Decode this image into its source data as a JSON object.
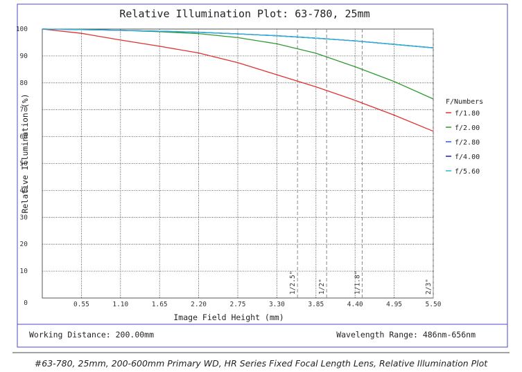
{
  "chart_data": {
    "type": "line",
    "title": "Relative Illumination Plot: 63-780, 25mm",
    "xlabel": "Image Field Height (mm)",
    "ylabel": "Relative Illumination (%)",
    "xlim": [
      0,
      5.5
    ],
    "ylim": [
      0,
      100
    ],
    "x_ticks": [
      "0.55",
      "1.10",
      "1.65",
      "2.20",
      "2.75",
      "3.30",
      "3.85",
      "4.40",
      "4.95",
      "5.50"
    ],
    "y_ticks": [
      "0",
      "10",
      "20",
      "30",
      "40",
      "50",
      "60",
      "70",
      "80",
      "90",
      "100"
    ],
    "grid": true,
    "legend_title": "F/Numbers",
    "legend_position": "right",
    "sensor_markers": [
      {
        "label": "1/2.5\"",
        "x": 3.59
      },
      {
        "label": "1/2\"",
        "x": 4.0
      },
      {
        "label": "1/1.8\"",
        "x": 4.5
      },
      {
        "label": "2/3\"",
        "x": 5.5
      }
    ],
    "series": [
      {
        "name": "f/1.80",
        "color": "#e03030",
        "x": [
          0,
          0.55,
          1.1,
          1.65,
          2.2,
          2.75,
          3.3,
          3.85,
          4.4,
          4.95,
          5.5
        ],
        "y": [
          100,
          98.4,
          95.9,
          93.6,
          91.1,
          87.5,
          83,
          78.5,
          73.5,
          68,
          62
        ]
      },
      {
        "name": "f/2.00",
        "color": "#2e9a2e",
        "x": [
          0,
          0.55,
          1.1,
          1.65,
          2.2,
          2.75,
          3.3,
          3.85,
          4.4,
          4.95,
          5.5
        ],
        "y": [
          100,
          99.9,
          99.5,
          99,
          98.3,
          96.8,
          94.5,
          91,
          86,
          80.5,
          74
        ]
      },
      {
        "name": "f/2.80",
        "color": "#2a55d8",
        "x": [
          0,
          0.55,
          1.1,
          1.65,
          2.2,
          2.75,
          3.3,
          3.85,
          4.4,
          4.95,
          5.5
        ],
        "y": [
          100,
          99.8,
          99.5,
          99.2,
          98.8,
          98.2,
          97.5,
          96.6,
          95.6,
          94.3,
          93
        ]
      },
      {
        "name": "f/4.00",
        "color": "#1a1ab8",
        "x": [
          0,
          0.55,
          1.1,
          1.65,
          2.2,
          2.75,
          3.3,
          3.85,
          4.4,
          4.95,
          5.5
        ],
        "y": [
          100,
          99.8,
          99.5,
          99.2,
          98.8,
          98.2,
          97.5,
          96.6,
          95.6,
          94.3,
          93
        ]
      },
      {
        "name": "f/5.60",
        "color": "#29b8d8",
        "x": [
          0,
          0.55,
          1.1,
          1.65,
          2.2,
          2.75,
          3.3,
          3.85,
          4.4,
          4.95,
          5.5
        ],
        "y": [
          100,
          99.8,
          99.5,
          99.2,
          98.8,
          98.2,
          97.5,
          96.6,
          95.6,
          94.3,
          93
        ]
      }
    ]
  },
  "footer": {
    "working_distance": "Working Distance: 200.00mm",
    "wavelength_range": "Wavelength Range: 486nm-656nm"
  },
  "caption": "#63-780, 25mm, 200-600mm Primary WD, HR Series Fixed Focal Length Lens, Relative Illumination Plot"
}
